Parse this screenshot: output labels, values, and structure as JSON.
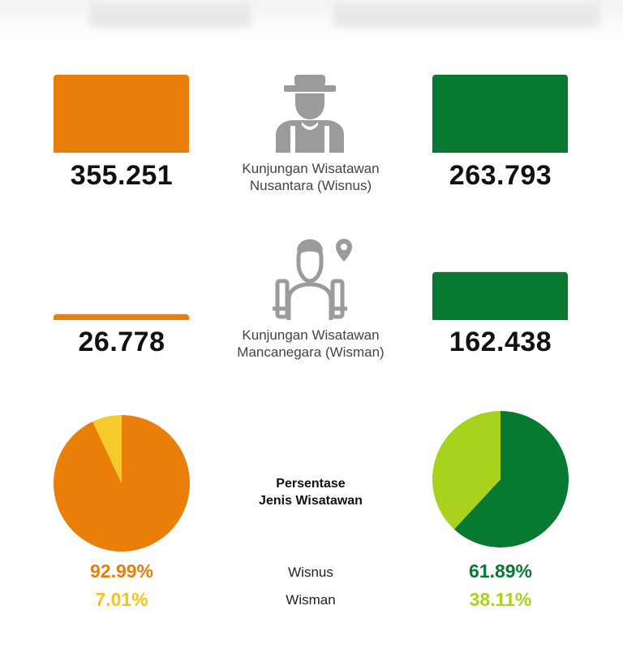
{
  "colors": {
    "orange": "#e97f08",
    "yellow": "#f6cc2c",
    "green": "#077930",
    "lime": "#a8d21e",
    "icon_gray": "#9b9b9b"
  },
  "icons": {
    "domestic": "tourist-hat-icon",
    "foreign": "backpacker-location-icon"
  },
  "chart_data": [
    {
      "type": "bar",
      "categories": [
        "Kunjungan Wisatawan Nusantara (Wisnus)",
        "Kunjungan Wisatawan Mancanegara (Wisman)"
      ],
      "series": [
        {
          "values": [
            355251,
            26778
          ],
          "labels": [
            "355.251",
            "26.778"
          ],
          "color": "#e97f08"
        },
        {
          "values": [
            263793,
            162438
          ],
          "labels": [
            "263.793",
            "162.438"
          ],
          "color": "#077930"
        }
      ]
    },
    {
      "type": "pie",
      "title": "Persentase Jenis Wisatawan",
      "categories": [
        "Wisnus",
        "Wisman"
      ],
      "values": [
        92.99,
        7.01
      ],
      "labels": [
        "92.99%",
        "7.01%"
      ],
      "colors": [
        "#e97f08",
        "#f6cc2c"
      ]
    },
    {
      "type": "pie",
      "title": "Persentase Jenis Wisatawan",
      "categories": [
        "Wisnus",
        "Wisman"
      ],
      "values": [
        61.89,
        38.11
      ],
      "labels": [
        "61.89%",
        "38.11%"
      ],
      "colors": [
        "#077930",
        "#a8d21e"
      ]
    }
  ],
  "captions": {
    "wisnus_line1_a": "Kunjungan ",
    "wisnus_line1_b": "Wisatawan",
    "wisnus_line2": "Nusantara (Wisnus)",
    "wisman_line1_a": "Kunjungan ",
    "wisman_line1_b": "Wisatawan",
    "wisman_line2": "Mancanegara (Wisman)"
  },
  "pie_title": {
    "line1": "Persentase",
    "line2": "Jenis Wisatawan"
  },
  "legend": {
    "wisnus": "Wisnus",
    "wisman": "Wisman"
  }
}
